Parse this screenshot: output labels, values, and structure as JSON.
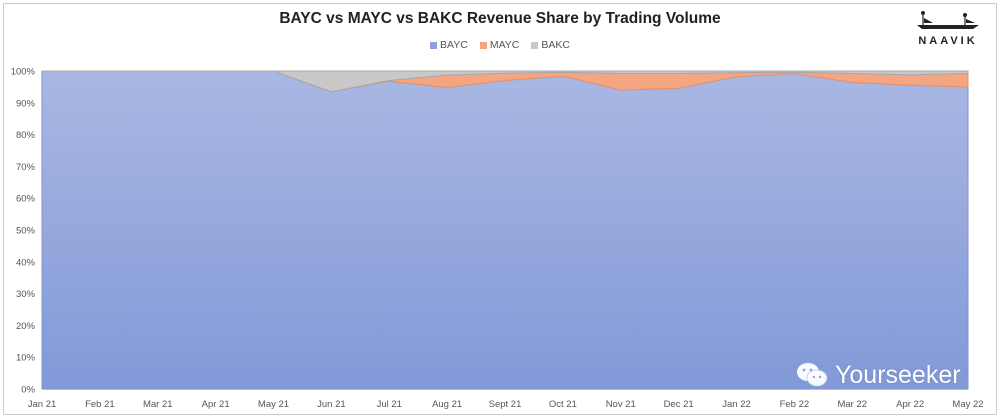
{
  "chart_data": {
    "type": "area",
    "stacked": true,
    "percent": true,
    "title": "BAYC vs MAYC vs BAKC Revenue Share by Trading Volume",
    "categories": [
      "Jan 21",
      "Feb 21",
      "Mar 21",
      "Apr 21",
      "May 21",
      "Jun 21",
      "Jul 21",
      "Aug 21",
      "Sept 21",
      "Oct 21",
      "Nov 21",
      "Dec 21",
      "Jan 22",
      "Feb 22",
      "Mar 22",
      "Apr 22",
      "May 22"
    ],
    "series": [
      {
        "name": "BAYC",
        "color": "#8ea3dc",
        "values": [
          100,
          100,
          100,
          100,
          100,
          93.5,
          96.8,
          94.8,
          97.0,
          98.4,
          94.0,
          94.6,
          98.2,
          99.2,
          96.4,
          95.5,
          95.0
        ]
      },
      {
        "name": "MAYC",
        "color": "#f4a582",
        "values": [
          0,
          0,
          0,
          0,
          0,
          0,
          0.2,
          3.9,
          2.3,
          1.2,
          5.2,
          4.6,
          1.3,
          0.4,
          2.8,
          3.3,
          4.2
        ]
      },
      {
        "name": "BAKC",
        "color": "#c8c8c8",
        "values": [
          0,
          0,
          0,
          0,
          0,
          6.5,
          3.0,
          1.3,
          0.7,
          0.4,
          0.8,
          0.8,
          0.5,
          0.4,
          0.8,
          1.2,
          0.8
        ]
      }
    ],
    "y_ticks": [
      "0%",
      "10%",
      "20%",
      "30%",
      "40%",
      "50%",
      "60%",
      "70%",
      "80%",
      "90%",
      "100%"
    ],
    "ylim": [
      0,
      100
    ],
    "legend_position": "top-center",
    "grid": false
  },
  "brand": {
    "name": "NAAVIK",
    "icon": "boat-icon"
  },
  "watermark": {
    "text": "Yourseeker",
    "icon": "wechat-icon"
  }
}
